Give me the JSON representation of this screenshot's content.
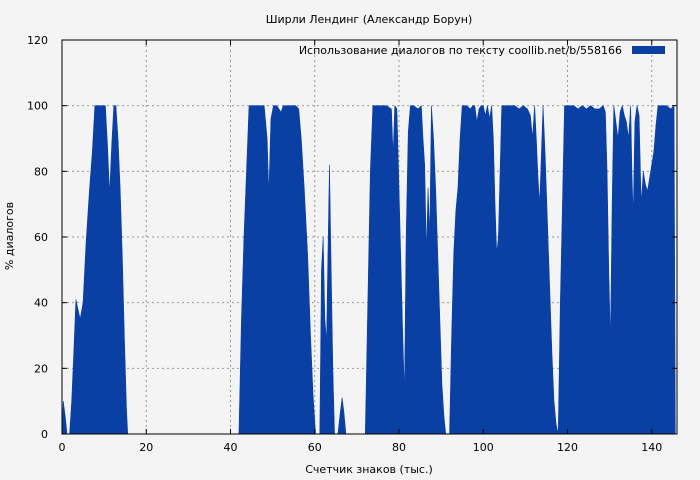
{
  "chart_data": {
    "type": "area",
    "title": "Ширли Лендинг (Александр Борун)",
    "xlabel": "Счетчик знаков (тыс.)",
    "ylabel": "% диалогов",
    "xlim": [
      0,
      146
    ],
    "ylim": [
      0,
      120
    ],
    "xticks": [
      0,
      20,
      40,
      60,
      80,
      100,
      120,
      140
    ],
    "yticks": [
      0,
      20,
      40,
      60,
      80,
      100,
      120
    ],
    "grid": true,
    "legend_position": "top-right",
    "series": [
      {
        "name": "Использование диалогов по тексту  coollib.net/b/558166",
        "color": "#0a3fa3",
        "points": [
          [
            0,
            0
          ],
          [
            0.3,
            10
          ],
          [
            0.8,
            5
          ],
          [
            1.2,
            0
          ],
          [
            1.8,
            0
          ],
          [
            2.3,
            10
          ],
          [
            2.8,
            25
          ],
          [
            3.3,
            41
          ],
          [
            3.8,
            38
          ],
          [
            4.3,
            35
          ],
          [
            5,
            40
          ],
          [
            5.7,
            58
          ],
          [
            6.5,
            74
          ],
          [
            7.2,
            86
          ],
          [
            7.8,
            100
          ],
          [
            8.5,
            100
          ],
          [
            9.2,
            100
          ],
          [
            9.8,
            100
          ],
          [
            10.3,
            100
          ],
          [
            10.8,
            88
          ],
          [
            11.3,
            73
          ],
          [
            11.8,
            88
          ],
          [
            12.3,
            100
          ],
          [
            12.8,
            100
          ],
          [
            13.3,
            90
          ],
          [
            13.8,
            75
          ],
          [
            14.3,
            55
          ],
          [
            14.8,
            30
          ],
          [
            15.3,
            8
          ],
          [
            15.6,
            0
          ],
          [
            42,
            0
          ],
          [
            42.6,
            35
          ],
          [
            43.2,
            60
          ],
          [
            43.8,
            80
          ],
          [
            44.4,
            100
          ],
          [
            45,
            100
          ],
          [
            46,
            100
          ],
          [
            47,
            100
          ],
          [
            48,
            100
          ],
          [
            48.7,
            90
          ],
          [
            49.1,
            73
          ],
          [
            49.6,
            96
          ],
          [
            50.2,
            100
          ],
          [
            51,
            100
          ],
          [
            52,
            98
          ],
          [
            52.5,
            100
          ],
          [
            53.5,
            100
          ],
          [
            54.5,
            100
          ],
          [
            55.5,
            100
          ],
          [
            56.2,
            99
          ],
          [
            56.8,
            90
          ],
          [
            57.5,
            75
          ],
          [
            58.3,
            55
          ],
          [
            59,
            30
          ],
          [
            59.6,
            12
          ],
          [
            60.2,
            0
          ],
          [
            61.2,
            0
          ],
          [
            61.6,
            50
          ],
          [
            62,
            60
          ],
          [
            62.4,
            35
          ],
          [
            62.8,
            28
          ],
          [
            63.2,
            60
          ],
          [
            63.5,
            82
          ],
          [
            63.9,
            50
          ],
          [
            64.3,
            20
          ],
          [
            64.7,
            0
          ],
          [
            65.5,
            0
          ],
          [
            66.1,
            7
          ],
          [
            66.5,
            11
          ],
          [
            66.9,
            7
          ],
          [
            67.4,
            0
          ],
          [
            72,
            0
          ],
          [
            72.6,
            40
          ],
          [
            73.2,
            80
          ],
          [
            73.8,
            100
          ],
          [
            75,
            100
          ],
          [
            77,
            100
          ],
          [
            78.2,
            99
          ],
          [
            78.6,
            85
          ],
          [
            79,
            100
          ],
          [
            79.5,
            99
          ],
          [
            79.9,
            80
          ],
          [
            80.4,
            55
          ],
          [
            80.9,
            30
          ],
          [
            81.3,
            12
          ],
          [
            81.7,
            60
          ],
          [
            82.2,
            92
          ],
          [
            82.7,
            100
          ],
          [
            83.5,
            100
          ],
          [
            84.5,
            99
          ],
          [
            85.3,
            100
          ],
          [
            85.7,
            90
          ],
          [
            86.1,
            82
          ],
          [
            86.5,
            55
          ],
          [
            86.9,
            75
          ],
          [
            87.3,
            60
          ],
          [
            87.7,
            100
          ],
          [
            88.2,
            90
          ],
          [
            88.7,
            75
          ],
          [
            89.2,
            55
          ],
          [
            89.7,
            35
          ],
          [
            90.2,
            15
          ],
          [
            90.7,
            5
          ],
          [
            91.1,
            0
          ],
          [
            92,
            0
          ],
          [
            92.5,
            30
          ],
          [
            93,
            55
          ],
          [
            93.5,
            68
          ],
          [
            94,
            75
          ],
          [
            94.5,
            90
          ],
          [
            95,
            100
          ],
          [
            96,
            100
          ],
          [
            97,
            99
          ],
          [
            97.5,
            100
          ],
          [
            98,
            100
          ],
          [
            98.5,
            95
          ],
          [
            99,
            99
          ],
          [
            99.5,
            100
          ],
          [
            100,
            100
          ],
          [
            100.5,
            97
          ],
          [
            101,
            100
          ],
          [
            101.5,
            96
          ],
          [
            102,
            100
          ],
          [
            102.4,
            90
          ],
          [
            102.8,
            70
          ],
          [
            103.2,
            55
          ],
          [
            103.6,
            60
          ],
          [
            104,
            80
          ],
          [
            104.4,
            100
          ],
          [
            105.5,
            100
          ],
          [
            106.5,
            100
          ],
          [
            107.5,
            100
          ],
          [
            108.5,
            99
          ],
          [
            109.5,
            100
          ],
          [
            110.5,
            99
          ],
          [
            111.2,
            97
          ],
          [
            111.7,
            90
          ],
          [
            112.2,
            100
          ],
          [
            112.6,
            90
          ],
          [
            113,
            78
          ],
          [
            113.4,
            70
          ],
          [
            113.8,
            85
          ],
          [
            114.2,
            100
          ],
          [
            114.7,
            85
          ],
          [
            115.1,
            70
          ],
          [
            115.5,
            55
          ],
          [
            115.9,
            40
          ],
          [
            116.3,
            25
          ],
          [
            116.8,
            10
          ],
          [
            117.3,
            3
          ],
          [
            117.8,
            0
          ],
          [
            118.3,
            40
          ],
          [
            118.8,
            70
          ],
          [
            119.3,
            100
          ],
          [
            120.5,
            100
          ],
          [
            121.5,
            100
          ],
          [
            122.5,
            99
          ],
          [
            123.5,
            100
          ],
          [
            124.5,
            99
          ],
          [
            125.5,
            100
          ],
          [
            126.5,
            99
          ],
          [
            127.5,
            99
          ],
          [
            128.5,
            100
          ],
          [
            129,
            98
          ],
          [
            129.4,
            80
          ],
          [
            129.8,
            50
          ],
          [
            130.2,
            28
          ],
          [
            130.6,
            70
          ],
          [
            131,
            100
          ],
          [
            131.5,
            95
          ],
          [
            132,
            90
          ],
          [
            132.5,
            98
          ],
          [
            133,
            100
          ],
          [
            133.5,
            97
          ],
          [
            134,
            95
          ],
          [
            134.5,
            90
          ],
          [
            135,
            100
          ],
          [
            135.3,
            80
          ],
          [
            135.6,
            66
          ],
          [
            136,
            95
          ],
          [
            136.5,
            100
          ],
          [
            137,
            97
          ],
          [
            137.5,
            70
          ],
          [
            138,
            80
          ],
          [
            138.5,
            76
          ],
          [
            139,
            74
          ],
          [
            139.5,
            78
          ],
          [
            140,
            82
          ],
          [
            140.5,
            86
          ],
          [
            141,
            94
          ],
          [
            141.5,
            100
          ],
          [
            142.5,
            100
          ],
          [
            143.5,
            100
          ],
          [
            144.5,
            99
          ],
          [
            145.3,
            100
          ],
          [
            145.6,
            0
          ]
        ]
      }
    ]
  }
}
